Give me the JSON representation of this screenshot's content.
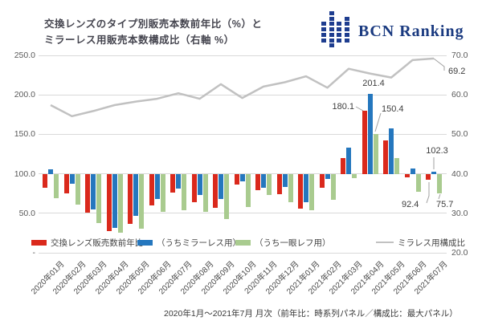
{
  "header": {
    "title_line1": "交換レンズのタイプ別販売本数前年比（%）と",
    "title_line2": "ミラーレス用販売本数構成比（右軸 %）",
    "logo_text": "BCN Ranking",
    "logo_color": "#1e3d8f"
  },
  "footer": {
    "caption": "2020年1月～2021年7月 月次（前年比：時系列パネル／構成比：最大パネル）"
  },
  "axes": {
    "left_ticks": [
      "250.0",
      "200.0",
      "150.0",
      "100.0",
      "50.0",
      "-"
    ],
    "left_tick_values": [
      250,
      200,
      150,
      100,
      50,
      0
    ],
    "right_ticks": [
      "70.0",
      "60.0",
      "50.0",
      "40.0",
      "30.0",
      "20.0"
    ],
    "right_tick_values": [
      70,
      60,
      50,
      40,
      30,
      20
    ]
  },
  "legend": [
    {
      "label": "交換レンズ販売数前年比",
      "color": "#da291c",
      "type": "bar"
    },
    {
      "label": "（うちミラーレス用）",
      "color": "#2577be",
      "type": "bar"
    },
    {
      "label": "（うち一眼レフ用）",
      "color": "#a9cb8f",
      "type": "bar"
    },
    {
      "label": "ミラレス用構成比",
      "color": "#c1c1c1",
      "type": "line"
    }
  ],
  "chart_data": {
    "type": "combo-bar-line",
    "categories": [
      "2020年01月",
      "2020年02月",
      "2020年03月",
      "2020年04月",
      "2020年05月",
      "2020年06月",
      "2020年07月",
      "2020年08月",
      "2020年09月",
      "2020年10月",
      "2020年11月",
      "2020年12月",
      "2021年01月",
      "2021年02月",
      "2021年03月",
      "2021年04月",
      "2021年05月",
      "2021年06月",
      "2021年07月"
    ],
    "series": [
      {
        "name": "交換レンズ販売数前年比",
        "type": "bar",
        "axis": "left",
        "color": "#da291c",
        "values": [
          82,
          75,
          51,
          27,
          37,
          60,
          76,
          64,
          57,
          86,
          79,
          74,
          56,
          82,
          120,
          180.1,
          142,
          96,
          92.4
        ]
      },
      {
        "name": "（うちミラーレス用）",
        "type": "bar",
        "axis": "left",
        "color": "#2577be",
        "values": [
          106,
          87,
          55,
          32,
          47,
          68,
          81,
          73,
          68,
          90,
          82,
          83,
          64,
          93,
          133,
          201.4,
          158,
          107,
          102.3
        ]
      },
      {
        "name": "（うち一眼レフ用）",
        "type": "bar",
        "axis": "left",
        "color": "#a9cb8f",
        "values": [
          69,
          61,
          38,
          25,
          30,
          52,
          54,
          52,
          43,
          58,
          73,
          64,
          54,
          67,
          95,
          150.4,
          120,
          77,
          75.7
        ]
      },
      {
        "name": "ミラレス用構成比",
        "type": "line",
        "axis": "right",
        "color": "#c1c1c1",
        "values": [
          57.4,
          54.6,
          55.9,
          57.4,
          58.3,
          59.0,
          60.4,
          59.0,
          62.7,
          59.2,
          62.1,
          63.2,
          64.7,
          61.8,
          66.6,
          65.4,
          64.4,
          68.8,
          69.2
        ]
      }
    ],
    "left_axis": {
      "min": 0,
      "max": 250,
      "bar_baseline": 100,
      "grid": true
    },
    "right_axis": {
      "min": 20,
      "max": 70
    },
    "legend_position": "bottom-inside",
    "annotations": [
      {
        "id": "apr21-red",
        "text": "180.1"
      },
      {
        "id": "apr21-blue",
        "text": "201.4"
      },
      {
        "id": "apr21-green",
        "text": "150.4"
      },
      {
        "id": "jul21-blue",
        "text": "102.3"
      },
      {
        "id": "jul21-red",
        "text": "92.4"
      },
      {
        "id": "jul21-green",
        "text": "75.7"
      },
      {
        "id": "jul21-line",
        "text": "69.2"
      }
    ]
  }
}
